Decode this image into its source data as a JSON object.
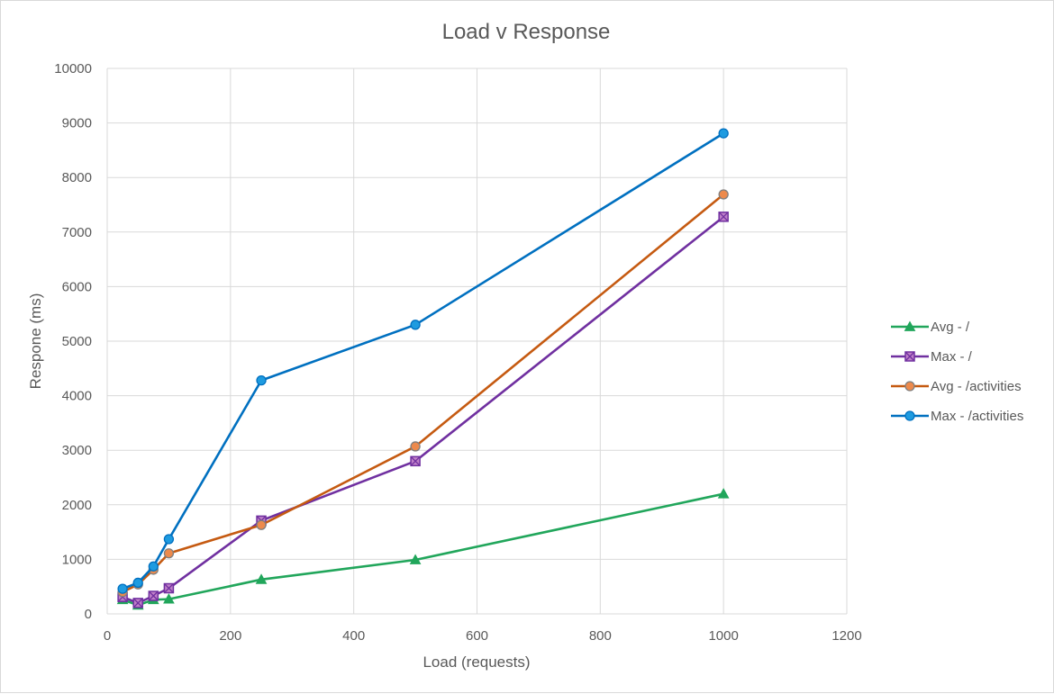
{
  "chart_data": {
    "type": "scatter",
    "title": "Load v Response",
    "xlabel": "Load (requests)",
    "ylabel": "Respone (ms)",
    "xlim": [
      0,
      1200
    ],
    "ylim": [
      0,
      10000
    ],
    "x_ticks": [
      "0",
      "200",
      "400",
      "600",
      "800",
      "1000",
      "1200"
    ],
    "y_ticks": [
      "0",
      "1000",
      "2000",
      "3000",
      "4000",
      "5000",
      "6000",
      "7000",
      "8000",
      "9000",
      "10000"
    ],
    "grid": true,
    "legend_position": "right",
    "series": [
      {
        "name": "Avg - /",
        "color": "#21a65b",
        "marker": "triangle",
        "x": [
          25,
          50,
          75,
          100,
          250,
          500,
          1000
        ],
        "y": [
          260,
          160,
          260,
          270,
          630,
          990,
          2200
        ]
      },
      {
        "name": "Max - /",
        "color": "#7030a0",
        "marker": "x-box",
        "x": [
          25,
          50,
          75,
          100,
          250,
          500,
          1000
        ],
        "y": [
          310,
          200,
          330,
          470,
          1710,
          2800,
          7280
        ]
      },
      {
        "name": "Avg - /activities",
        "color": "#c55a11",
        "marker": "circle",
        "x": [
          25,
          50,
          75,
          100,
          250,
          500,
          1000
        ],
        "y": [
          400,
          540,
          810,
          1110,
          1630,
          3070,
          7690
        ]
      },
      {
        "name": "Max - /activities",
        "color": "#0070c0",
        "marker": "circle",
        "x": [
          25,
          50,
          75,
          100,
          250,
          500,
          1000
        ],
        "y": [
          460,
          570,
          870,
          1370,
          4280,
          5300,
          8810
        ]
      }
    ]
  }
}
